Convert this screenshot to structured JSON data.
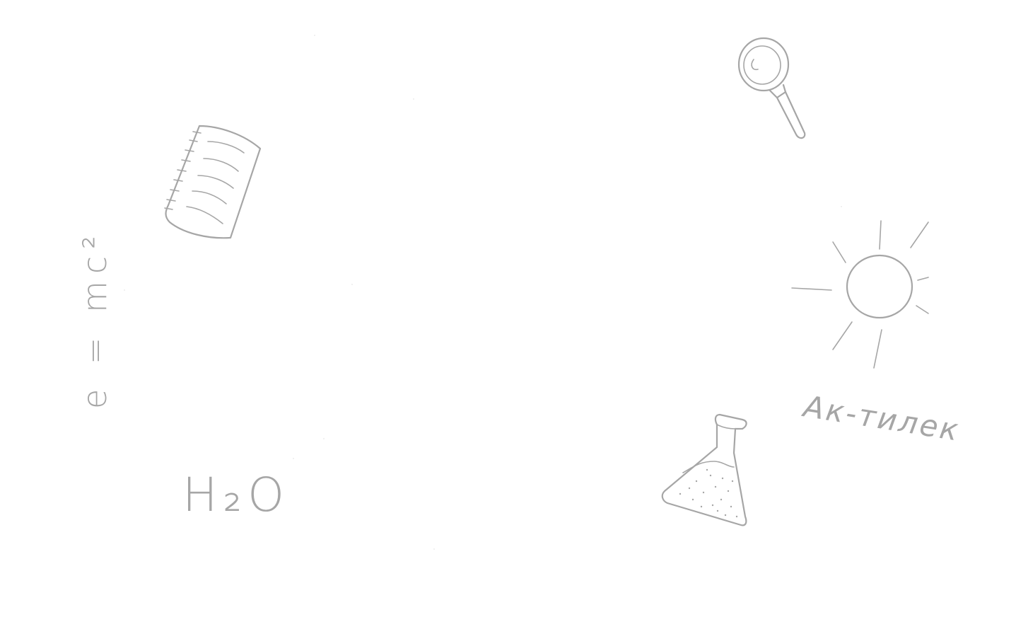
{
  "background_color": "#ffffff",
  "ink_color": "#a6a6a6",
  "doodles": {
    "formula_text": "e = mc²",
    "molecule_text": "H₂O",
    "caption_text": "Ак-тилек",
    "notebook_icon": "notebook-icon",
    "magnifier_icon": "magnifying-glass-icon",
    "sun_icon": "sun-icon",
    "flask_icon": "flask-icon"
  }
}
